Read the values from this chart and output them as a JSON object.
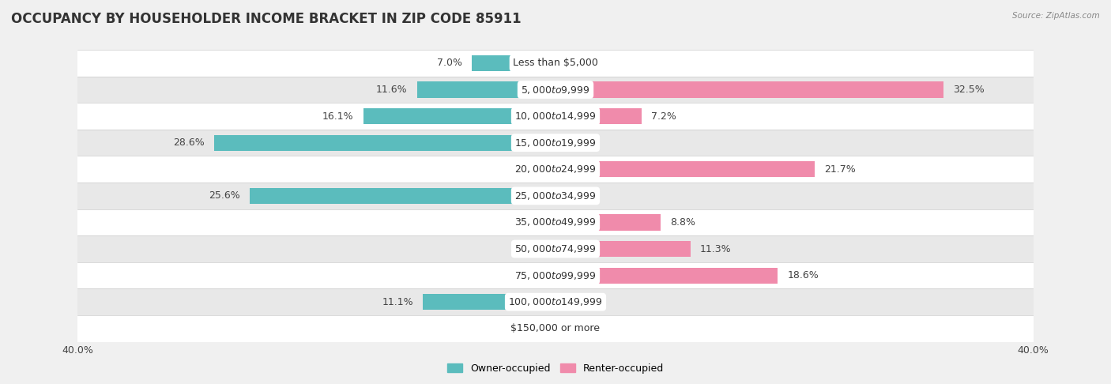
{
  "title": "OCCUPANCY BY HOUSEHOLDER INCOME BRACKET IN ZIP CODE 85911",
  "source": "Source: ZipAtlas.com",
  "categories": [
    "Less than $5,000",
    "$5,000 to $9,999",
    "$10,000 to $14,999",
    "$15,000 to $19,999",
    "$20,000 to $24,999",
    "$25,000 to $34,999",
    "$35,000 to $49,999",
    "$50,000 to $74,999",
    "$75,000 to $99,999",
    "$100,000 to $149,999",
    "$150,000 or more"
  ],
  "owner_values": [
    7.0,
    11.6,
    16.1,
    28.6,
    0.0,
    25.6,
    0.0,
    0.0,
    0.0,
    11.1,
    0.0
  ],
  "renter_values": [
    0.0,
    32.5,
    7.2,
    0.0,
    21.7,
    0.0,
    8.8,
    11.3,
    18.6,
    0.0,
    0.0
  ],
  "owner_color": "#5bbcbd",
  "renter_color": "#f08bab",
  "axis_max": 40.0,
  "bar_height": 0.6,
  "background_color": "#f0f0f0",
  "title_fontsize": 12,
  "label_fontsize": 9,
  "category_fontsize": 9,
  "legend_fontsize": 9,
  "axis_label_fontsize": 9
}
